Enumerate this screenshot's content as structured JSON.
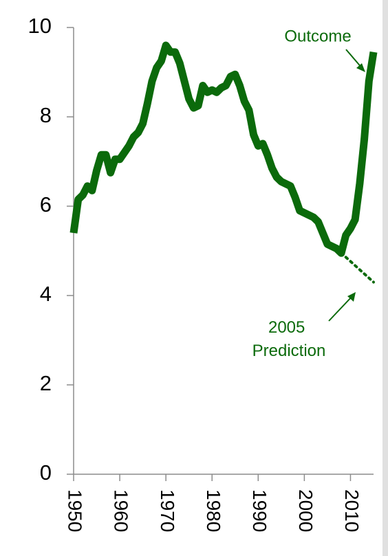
{
  "chart_data": {
    "type": "line",
    "xlim": [
      1950,
      2015
    ],
    "xticks": [
      1950,
      1960,
      1970,
      1980,
      1990,
      2000,
      2010
    ],
    "ylim": [
      0,
      10
    ],
    "yticks": [
      0,
      2,
      4,
      6,
      8,
      10
    ],
    "series": [
      {
        "name": "Outcome",
        "color": "#0b6a0b",
        "style": "solid",
        "x": [
          1950,
          1951,
          1952,
          1953,
          1954,
          1955,
          1956,
          1957,
          1958,
          1959,
          1960,
          1961,
          1962,
          1963,
          1964,
          1965,
          1966,
          1967,
          1968,
          1969,
          1970,
          1971,
          1972,
          1973,
          1974,
          1975,
          1976,
          1977,
          1978,
          1979,
          1980,
          1981,
          1982,
          1983,
          1984,
          1985,
          1986,
          1987,
          1988,
          1989,
          1990,
          1991,
          1992,
          1993,
          1994,
          1995,
          1996,
          1997,
          1998,
          1999,
          2000,
          2001,
          2002,
          2003,
          2004,
          2005,
          2006,
          2007,
          2008,
          2009,
          2010,
          2011,
          2012,
          2013,
          2014,
          2015
        ],
        "values": [
          5.4,
          6.15,
          6.25,
          6.45,
          6.35,
          6.8,
          7.15,
          7.15,
          6.75,
          7.05,
          7.05,
          7.2,
          7.35,
          7.55,
          7.65,
          7.85,
          8.3,
          8.8,
          9.1,
          9.25,
          9.6,
          9.45,
          9.45,
          9.2,
          8.8,
          8.4,
          8.2,
          8.25,
          8.7,
          8.55,
          8.6,
          8.55,
          8.65,
          8.7,
          8.9,
          8.95,
          8.7,
          8.35,
          8.15,
          7.6,
          7.35,
          7.4,
          7.15,
          6.85,
          6.65,
          6.55,
          6.5,
          6.45,
          6.2,
          5.9,
          5.85,
          5.8,
          5.75,
          5.65,
          5.4,
          5.15,
          5.1,
          5.05,
          4.95,
          5.35,
          5.5,
          5.7,
          6.5,
          7.5,
          8.8,
          9.45
        ]
      },
      {
        "name": "2005 Prediction",
        "color": "#0b6a0b",
        "style": "dotted",
        "x": [
          2008,
          2015
        ],
        "values": [
          4.95,
          4.3
        ]
      }
    ]
  }
}
